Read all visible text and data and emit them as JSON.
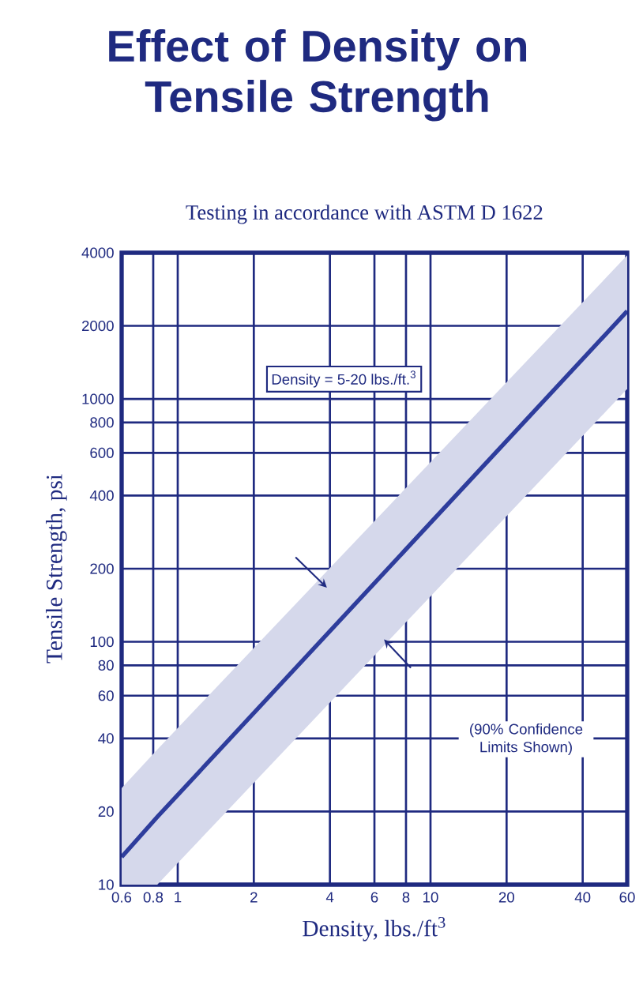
{
  "chart_data": {
    "type": "line",
    "title": "Effect of Density on Tensile Strength",
    "subtitle": "Testing in accordance with ASTM D 1622",
    "xlabel": "Density, lbs./ft$^{3}$",
    "ylabel": "Tensile Strength, psi",
    "annotations": [
      "Density = 5-20 lbs./ft.$^{3}$",
      "(90% Confidence Limits Shown)"
    ],
    "series": [
      {
        "color": "#2e3d9c",
        "x": [
          0.6,
          0.83,
          60
        ],
        "values": [
          13,
          19,
          2300
        ],
        "lower": [
          10,
          10,
          1100
        ],
        "upper": [
          25,
          36,
          3900
        ]
      }
    ],
    "log": "xy",
    "xlim": [
      0.6,
      60
    ],
    "ylim": [
      10,
      4000
    ],
    "xticks": [
      0.6,
      0.8,
      1,
      2,
      4,
      6,
      8,
      10,
      20,
      40,
      60
    ],
    "yticks": [
      10,
      20,
      40,
      60,
      80,
      100,
      200,
      400,
      600,
      800,
      1000,
      2000,
      4000
    ],
    "grid": true,
    "marker": "none",
    "line_style": "solid"
  }
}
